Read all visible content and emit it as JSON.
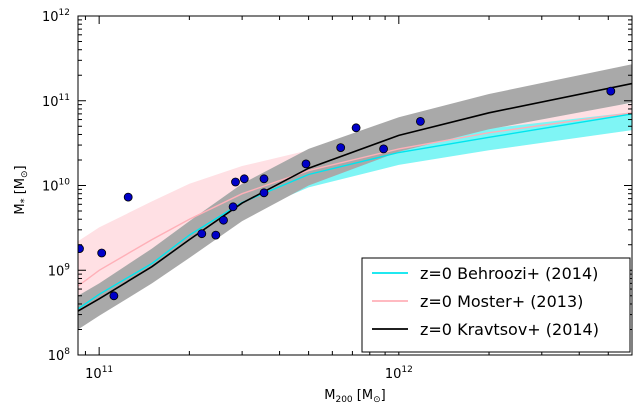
{
  "chart_data": {
    "type": "scatter",
    "title": "",
    "xlabel": {
      "main": "M",
      "sub": "200",
      "unit_open": " [M",
      "unit_sym": "⊙",
      "unit_close": "]"
    },
    "ylabel": {
      "main": "M",
      "sub": "*",
      "unit_open": " [M",
      "unit_sym": "⊙",
      "unit_close": "]"
    },
    "x_scale": "log",
    "y_scale": "log",
    "xlim": [
      85000000000.0,
      6000000000000.0
    ],
    "ylim": [
      100000000.0,
      1000000000000.0
    ],
    "grid": false,
    "legend_position": "bottom-right",
    "x_ticks": [
      {
        "value": 100000000000.0,
        "base": "10",
        "exp": "11"
      },
      {
        "value": 1000000000000.0,
        "base": "10",
        "exp": "12"
      }
    ],
    "y_ticks": [
      {
        "value": 100000000.0,
        "base": "10",
        "exp": "8"
      },
      {
        "value": 1000000000.0,
        "base": "10",
        "exp": "9"
      },
      {
        "value": 10000000000.0,
        "base": "10",
        "exp": "10"
      },
      {
        "value": 100000000000.0,
        "base": "10",
        "exp": "11"
      },
      {
        "value": 1000000000000.0,
        "base": "10",
        "exp": "12"
      }
    ],
    "series": [
      {
        "name": "z=0 Behroozi+ (2014)",
        "kind": "line+band",
        "color": "#00e5ee",
        "band_color": "#7ff5f5",
        "x": [
          85000000000.0,
          100000000000.0,
          150000000000.0,
          200000000000.0,
          300000000000.0,
          500000000000.0,
          1000000000000.0,
          2000000000000.0,
          6000000000000.0
        ],
        "y": [
          350000000.0,
          520000000.0,
          1200000000.0,
          2600000000.0,
          6300000000.0,
          13500000000.0,
          24500000000.0,
          37000000000.0,
          70000000000.0
        ],
        "band_low": [
          270000000.0,
          400000000.0,
          900000000.0,
          1900000000.0,
          4400000000.0,
          9500000000.0,
          17500000000.0,
          26000000000.0,
          45000000000.0
        ],
        "band_high": [
          450000000.0,
          680000000.0,
          1600000000.0,
          3400000000.0,
          8000000000.0,
          17500000000.0,
          31000000000.0,
          47000000000.0,
          73000000000.0
        ]
      },
      {
        "name": "z=0 Moster+ (2013)",
        "kind": "line+band",
        "color": "#ffb0b8",
        "band_color": "#ffe0e4",
        "x": [
          85000000000.0,
          100000000000.0,
          150000000000.0,
          200000000000.0,
          300000000000.0,
          500000000000.0,
          1000000000000.0,
          2000000000000.0,
          6000000000000.0
        ],
        "y": [
          650000000.0,
          1000000000.0,
          2300000000.0,
          4000000000.0,
          8000000000.0,
          15000000000.0,
          27000000000.0,
          42000000000.0,
          72000000000.0
        ],
        "band_low": [
          300000000.0,
          400000000.0,
          900000000.0,
          2200000000.0,
          5000000000.0,
          11500000000.0,
          22000000000.0,
          33000000000.0,
          56000000000.0
        ],
        "band_high": [
          2200000000.0,
          3200000000.0,
          6500000000.0,
          10500000000.0,
          17000000000.0,
          26000000000.0,
          39000000000.0,
          58000000000.0,
          93000000000.0
        ]
      },
      {
        "name": "z=0 Kravtsov+ (2014)",
        "kind": "line+band",
        "color": "#000000",
        "band_color": "#a9a9a9",
        "x": [
          85000000000.0,
          100000000000.0,
          150000000000.0,
          200000000000.0,
          300000000000.0,
          500000000000.0,
          1000000000000.0,
          2000000000000.0,
          6000000000000.0
        ],
        "y": [
          330000000.0,
          460000000.0,
          1100000000.0,
          2300000000.0,
          6200000000.0,
          16000000000.0,
          39000000000.0,
          72000000000.0,
          160000000000.0
        ],
        "band_low": [
          200000000.0,
          290000000.0,
          700000000.0,
          1400000000.0,
          3800000000.0,
          10000000000.0,
          25000000000.0,
          46000000000.0,
          95000000000.0
        ],
        "band_high": [
          500000000.0,
          700000000.0,
          1800000000.0,
          3800000000.0,
          10500000000.0,
          27000000000.0,
          64000000000.0,
          120000000000.0,
          270000000000.0
        ]
      },
      {
        "name": "",
        "kind": "points",
        "color": "#0000c8",
        "x": [
          86000000000.0,
          102000000000.0,
          112000000000.0,
          125000000000.0,
          220000000000.0,
          245000000000.0,
          260000000000.0,
          280000000000.0,
          285000000000.0,
          305000000000.0,
          355000000000.0,
          355000000000.0,
          490000000000.0,
          640000000000.0,
          720000000000.0,
          890000000000.0,
          1180000000000.0,
          5100000000000.0
        ],
        "y": [
          1800000000.0,
          1600000000.0,
          500000000.0,
          7300000000.0,
          2700000000.0,
          2600000000.0,
          3900000000.0,
          5600000000.0,
          11000000000.0,
          12000000000.0,
          8200000000.0,
          12000000000.0,
          18000000000.0,
          28000000000.0,
          48000000000.0,
          27000000000.0,
          57000000000.0,
          130000000000.0
        ]
      }
    ]
  }
}
